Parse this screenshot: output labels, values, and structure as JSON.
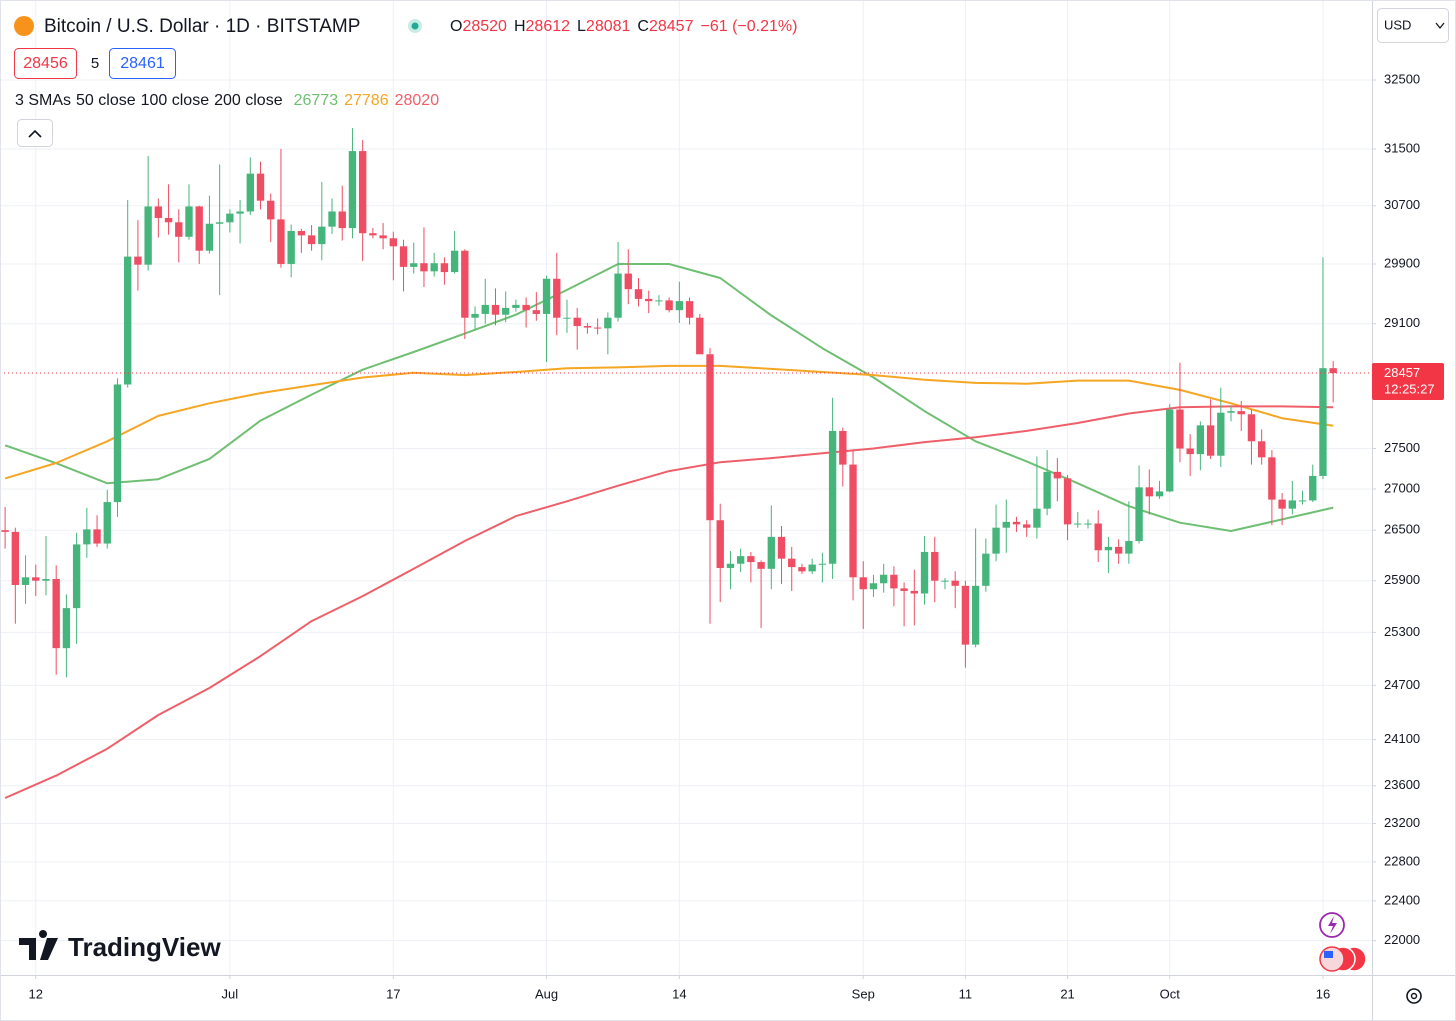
{
  "chart_data": {
    "type": "candlestick",
    "title": "Bitcoin / U.S. Dollar · 1D · BITSTAMP",
    "ohlc_labels": [
      "O",
      "H",
      "L",
      "C"
    ],
    "change": "−61 (−0.21%)",
    "bid": 28456,
    "spread": 5,
    "ask": 28461,
    "indicator": "3 SMAs",
    "currency": "USD",
    "countdown": "12:25:27",
    "brand": "TradingView",
    "log_scale": true,
    "grid": true,
    "up_color": "#46b57c",
    "down_color": "#ee4d63",
    "ylim": [
      21660,
      33625
    ],
    "yticks": [
      32500,
      31500,
      30700,
      29900,
      29100,
      27500,
      27000,
      26500,
      25900,
      25300,
      24700,
      24100,
      23600,
      23200,
      22800,
      22400,
      22000
    ],
    "xlim": [
      -0.5,
      133.8
    ],
    "xticks": [
      {
        "value": 3,
        "label": "12"
      },
      {
        "value": 22,
        "label": "Jul"
      },
      {
        "value": 38,
        "label": "17"
      },
      {
        "value": 53,
        "label": "Aug"
      },
      {
        "value": 66,
        "label": "14"
      },
      {
        "value": 84,
        "label": "Sep"
      },
      {
        "value": 94,
        "label": "11"
      },
      {
        "value": 104,
        "label": "21"
      },
      {
        "value": 114,
        "label": "Oct"
      },
      {
        "value": 129,
        "label": "16"
      }
    ],
    "candles": [
      [
        26500,
        26780,
        26280,
        26480
      ],
      [
        26480,
        26530,
        25400,
        25850
      ],
      [
        25850,
        26200,
        25630,
        25940
      ],
      [
        25940,
        26090,
        25720,
        25900
      ],
      [
        25900,
        26430,
        25730,
        25920
      ],
      [
        25920,
        26080,
        24820,
        25120
      ],
      [
        25120,
        25740,
        24790,
        25580
      ],
      [
        25580,
        26470,
        25170,
        26330
      ],
      [
        26330,
        26770,
        26170,
        26510
      ],
      [
        26510,
        26680,
        26300,
        26340
      ],
      [
        26340,
        26990,
        26280,
        26840
      ],
      [
        26840,
        28390,
        26660,
        28310
      ],
      [
        28310,
        30780,
        28270,
        30000
      ],
      [
        30000,
        30500,
        29540,
        29890
      ],
      [
        29890,
        31400,
        29810,
        30690
      ],
      [
        30690,
        30800,
        30260,
        30530
      ],
      [
        30530,
        31000,
        30300,
        30470
      ],
      [
        30470,
        30650,
        29920,
        30270
      ],
      [
        30270,
        31000,
        30230,
        30690
      ],
      [
        30690,
        30700,
        29900,
        30080
      ],
      [
        30080,
        30840,
        30040,
        30450
      ],
      [
        30450,
        31280,
        29480,
        30470
      ],
      [
        30470,
        30650,
        30330,
        30590
      ],
      [
        30590,
        30780,
        30180,
        30620
      ],
      [
        30620,
        31380,
        30570,
        31150
      ],
      [
        31150,
        31320,
        30650,
        30770
      ],
      [
        30770,
        30870,
        30200,
        30510
      ],
      [
        30510,
        31500,
        29850,
        29900
      ],
      [
        29900,
        30440,
        29720,
        30350
      ],
      [
        30350,
        30380,
        30050,
        30290
      ],
      [
        30290,
        30430,
        30080,
        30170
      ],
      [
        30170,
        31030,
        29950,
        30410
      ],
      [
        30410,
        30800,
        30310,
        30620
      ],
      [
        30620,
        30980,
        30220,
        30390
      ],
      [
        30390,
        31800,
        30250,
        31470
      ],
      [
        31470,
        31630,
        29940,
        30320
      ],
      [
        30320,
        30390,
        30250,
        30290
      ],
      [
        30290,
        30460,
        30100,
        30250
      ],
      [
        30250,
        30340,
        29680,
        30140
      ],
      [
        30140,
        30230,
        29530,
        29860
      ],
      [
        29860,
        30190,
        29770,
        29910
      ],
      [
        29910,
        30400,
        29590,
        29800
      ],
      [
        29800,
        30050,
        29730,
        29910
      ],
      [
        29910,
        29990,
        29620,
        29790
      ],
      [
        29790,
        30350,
        29770,
        30080
      ],
      [
        30080,
        30100,
        28900,
        29180
      ],
      [
        29180,
        29330,
        29030,
        29230
      ],
      [
        29230,
        29700,
        29100,
        29350
      ],
      [
        29350,
        29570,
        29080,
        29220
      ],
      [
        29220,
        29530,
        29120,
        29310
      ],
      [
        29310,
        29420,
        29260,
        29350
      ],
      [
        29350,
        29450,
        29050,
        29280
      ],
      [
        29280,
        29520,
        29140,
        29230
      ],
      [
        29230,
        29740,
        28600,
        29700
      ],
      [
        29700,
        30050,
        28950,
        29180
      ],
      [
        29180,
        29420,
        28980,
        29180
      ],
      [
        29180,
        29310,
        28760,
        29070
      ],
      [
        29070,
        29110,
        28970,
        29050
      ],
      [
        29050,
        29170,
        28960,
        29040
      ],
      [
        29040,
        29250,
        28700,
        29180
      ],
      [
        29180,
        30200,
        29130,
        29770
      ],
      [
        29770,
        30100,
        29360,
        29560
      ],
      [
        29560,
        29710,
        29330,
        29430
      ],
      [
        29430,
        29540,
        29240,
        29400
      ],
      [
        29400,
        29480,
        29340,
        29410
      ],
      [
        29410,
        29450,
        29250,
        29280
      ],
      [
        29280,
        29660,
        29110,
        29400
      ],
      [
        29400,
        29450,
        29090,
        29180
      ],
      [
        29180,
        29230,
        28720,
        28700
      ],
      [
        28700,
        28780,
        25400,
        26620
      ],
      [
        26620,
        26820,
        25650,
        26050
      ],
      [
        26050,
        26250,
        25800,
        26100
      ],
      [
        26100,
        26280,
        26000,
        26190
      ],
      [
        26190,
        26240,
        25880,
        26120
      ],
      [
        26120,
        26140,
        25350,
        26040
      ],
      [
        26040,
        26800,
        25800,
        26420
      ],
      [
        26420,
        26550,
        25860,
        26160
      ],
      [
        26160,
        26300,
        25780,
        26060
      ],
      [
        26060,
        26100,
        25980,
        26010
      ],
      [
        26010,
        26160,
        25980,
        26090
      ],
      [
        26090,
        26230,
        25880,
        26100
      ],
      [
        26100,
        28140,
        25920,
        27720
      ],
      [
        27720,
        27760,
        27030,
        27300
      ],
      [
        27300,
        27490,
        25670,
        25940
      ],
      [
        25940,
        26130,
        25340,
        25800
      ],
      [
        25800,
        25970,
        25710,
        25870
      ],
      [
        25870,
        26100,
        25760,
        25970
      ],
      [
        25970,
        26070,
        25600,
        25810
      ],
      [
        25810,
        25880,
        25370,
        25780
      ],
      [
        25780,
        26030,
        25380,
        25750
      ],
      [
        25750,
        26430,
        25620,
        26240
      ],
      [
        26240,
        26420,
        25650,
        25900
      ],
      [
        25900,
        25930,
        25800,
        25900
      ],
      [
        25900,
        26010,
        25580,
        25840
      ],
      [
        25840,
        25900,
        24900,
        25160
      ],
      [
        25160,
        26520,
        25130,
        25840
      ],
      [
        25840,
        26400,
        25770,
        26220
      ],
      [
        26220,
        26810,
        26130,
        26530
      ],
      [
        26530,
        26870,
        26230,
        26600
      ],
      [
        26600,
        26660,
        26480,
        26570
      ],
      [
        26570,
        26620,
        26420,
        26530
      ],
      [
        26530,
        27400,
        26400,
        26760
      ],
      [
        26760,
        27480,
        26680,
        27210
      ],
      [
        27210,
        27380,
        26850,
        27130
      ],
      [
        27130,
        27170,
        26380,
        26570
      ],
      [
        26570,
        26720,
        26530,
        26580
      ],
      [
        26580,
        26630,
        26520,
        26580
      ],
      [
        26580,
        26740,
        26120,
        26260
      ],
      [
        26260,
        26420,
        25990,
        26300
      ],
      [
        26300,
        26390,
        26100,
        26220
      ],
      [
        26220,
        26850,
        26100,
        26370
      ],
      [
        26370,
        27290,
        26340,
        27020
      ],
      [
        27020,
        27240,
        26690,
        26910
      ],
      [
        26910,
        27100,
        26880,
        26970
      ],
      [
        26970,
        28060,
        26960,
        27990
      ],
      [
        27990,
        28590,
        27330,
        27500
      ],
      [
        27500,
        27680,
        27160,
        27430
      ],
      [
        27430,
        27840,
        27230,
        27790
      ],
      [
        27790,
        28120,
        27370,
        27410
      ],
      [
        27410,
        28270,
        27270,
        27950
      ],
      [
        27950,
        28040,
        27840,
        27970
      ],
      [
        27970,
        28100,
        27720,
        27930
      ],
      [
        27930,
        27990,
        27300,
        27590
      ],
      [
        27590,
        27740,
        27300,
        27390
      ],
      [
        27390,
        27480,
        26560,
        26870
      ],
      [
        26870,
        26950,
        26560,
        26760
      ],
      [
        26760,
        27100,
        26690,
        26860
      ],
      [
        26860,
        26980,
        26810,
        26860
      ],
      [
        26860,
        27300,
        26840,
        27160
      ],
      [
        27160,
        29990,
        27120,
        28520
      ],
      [
        28520,
        28612,
        28081,
        28457
      ]
    ],
    "sma_x": [
      0,
      5,
      10,
      15,
      20,
      25,
      30,
      35,
      40,
      45,
      50,
      55,
      60,
      65,
      70,
      75,
      80,
      85,
      90,
      95,
      100,
      105,
      110,
      115,
      120,
      125,
      130
    ],
    "series": [
      {
        "name": "50 close",
        "color": "#6fbf73",
        "values": [
          27540,
          27317,
          27070,
          27120,
          27370,
          27850,
          28180,
          28500,
          28730,
          28970,
          29220,
          29550,
          29900,
          29900,
          29710,
          29210,
          28780,
          28400,
          27970,
          27590,
          27340,
          27070,
          26790,
          26590,
          26490,
          26630,
          26773
        ]
      },
      {
        "name": "100 close",
        "color": "#f5a623",
        "values": [
          27130,
          27320,
          27590,
          27910,
          28070,
          28200,
          28300,
          28400,
          28460,
          28430,
          28470,
          28520,
          28530,
          28550,
          28550,
          28510,
          28470,
          28430,
          28370,
          28330,
          28320,
          28360,
          28360,
          28240,
          28070,
          27880,
          27786
        ]
      },
      {
        "name": "200 close",
        "color": "#ee5f6a",
        "values": [
          23470,
          23710,
          24000,
          24370,
          24670,
          25030,
          25430,
          25720,
          26040,
          26370,
          26670,
          26850,
          27040,
          27220,
          27330,
          27380,
          27440,
          27500,
          27580,
          27640,
          27720,
          27820,
          27940,
          28020,
          28030,
          28030,
          28020
        ]
      }
    ]
  }
}
